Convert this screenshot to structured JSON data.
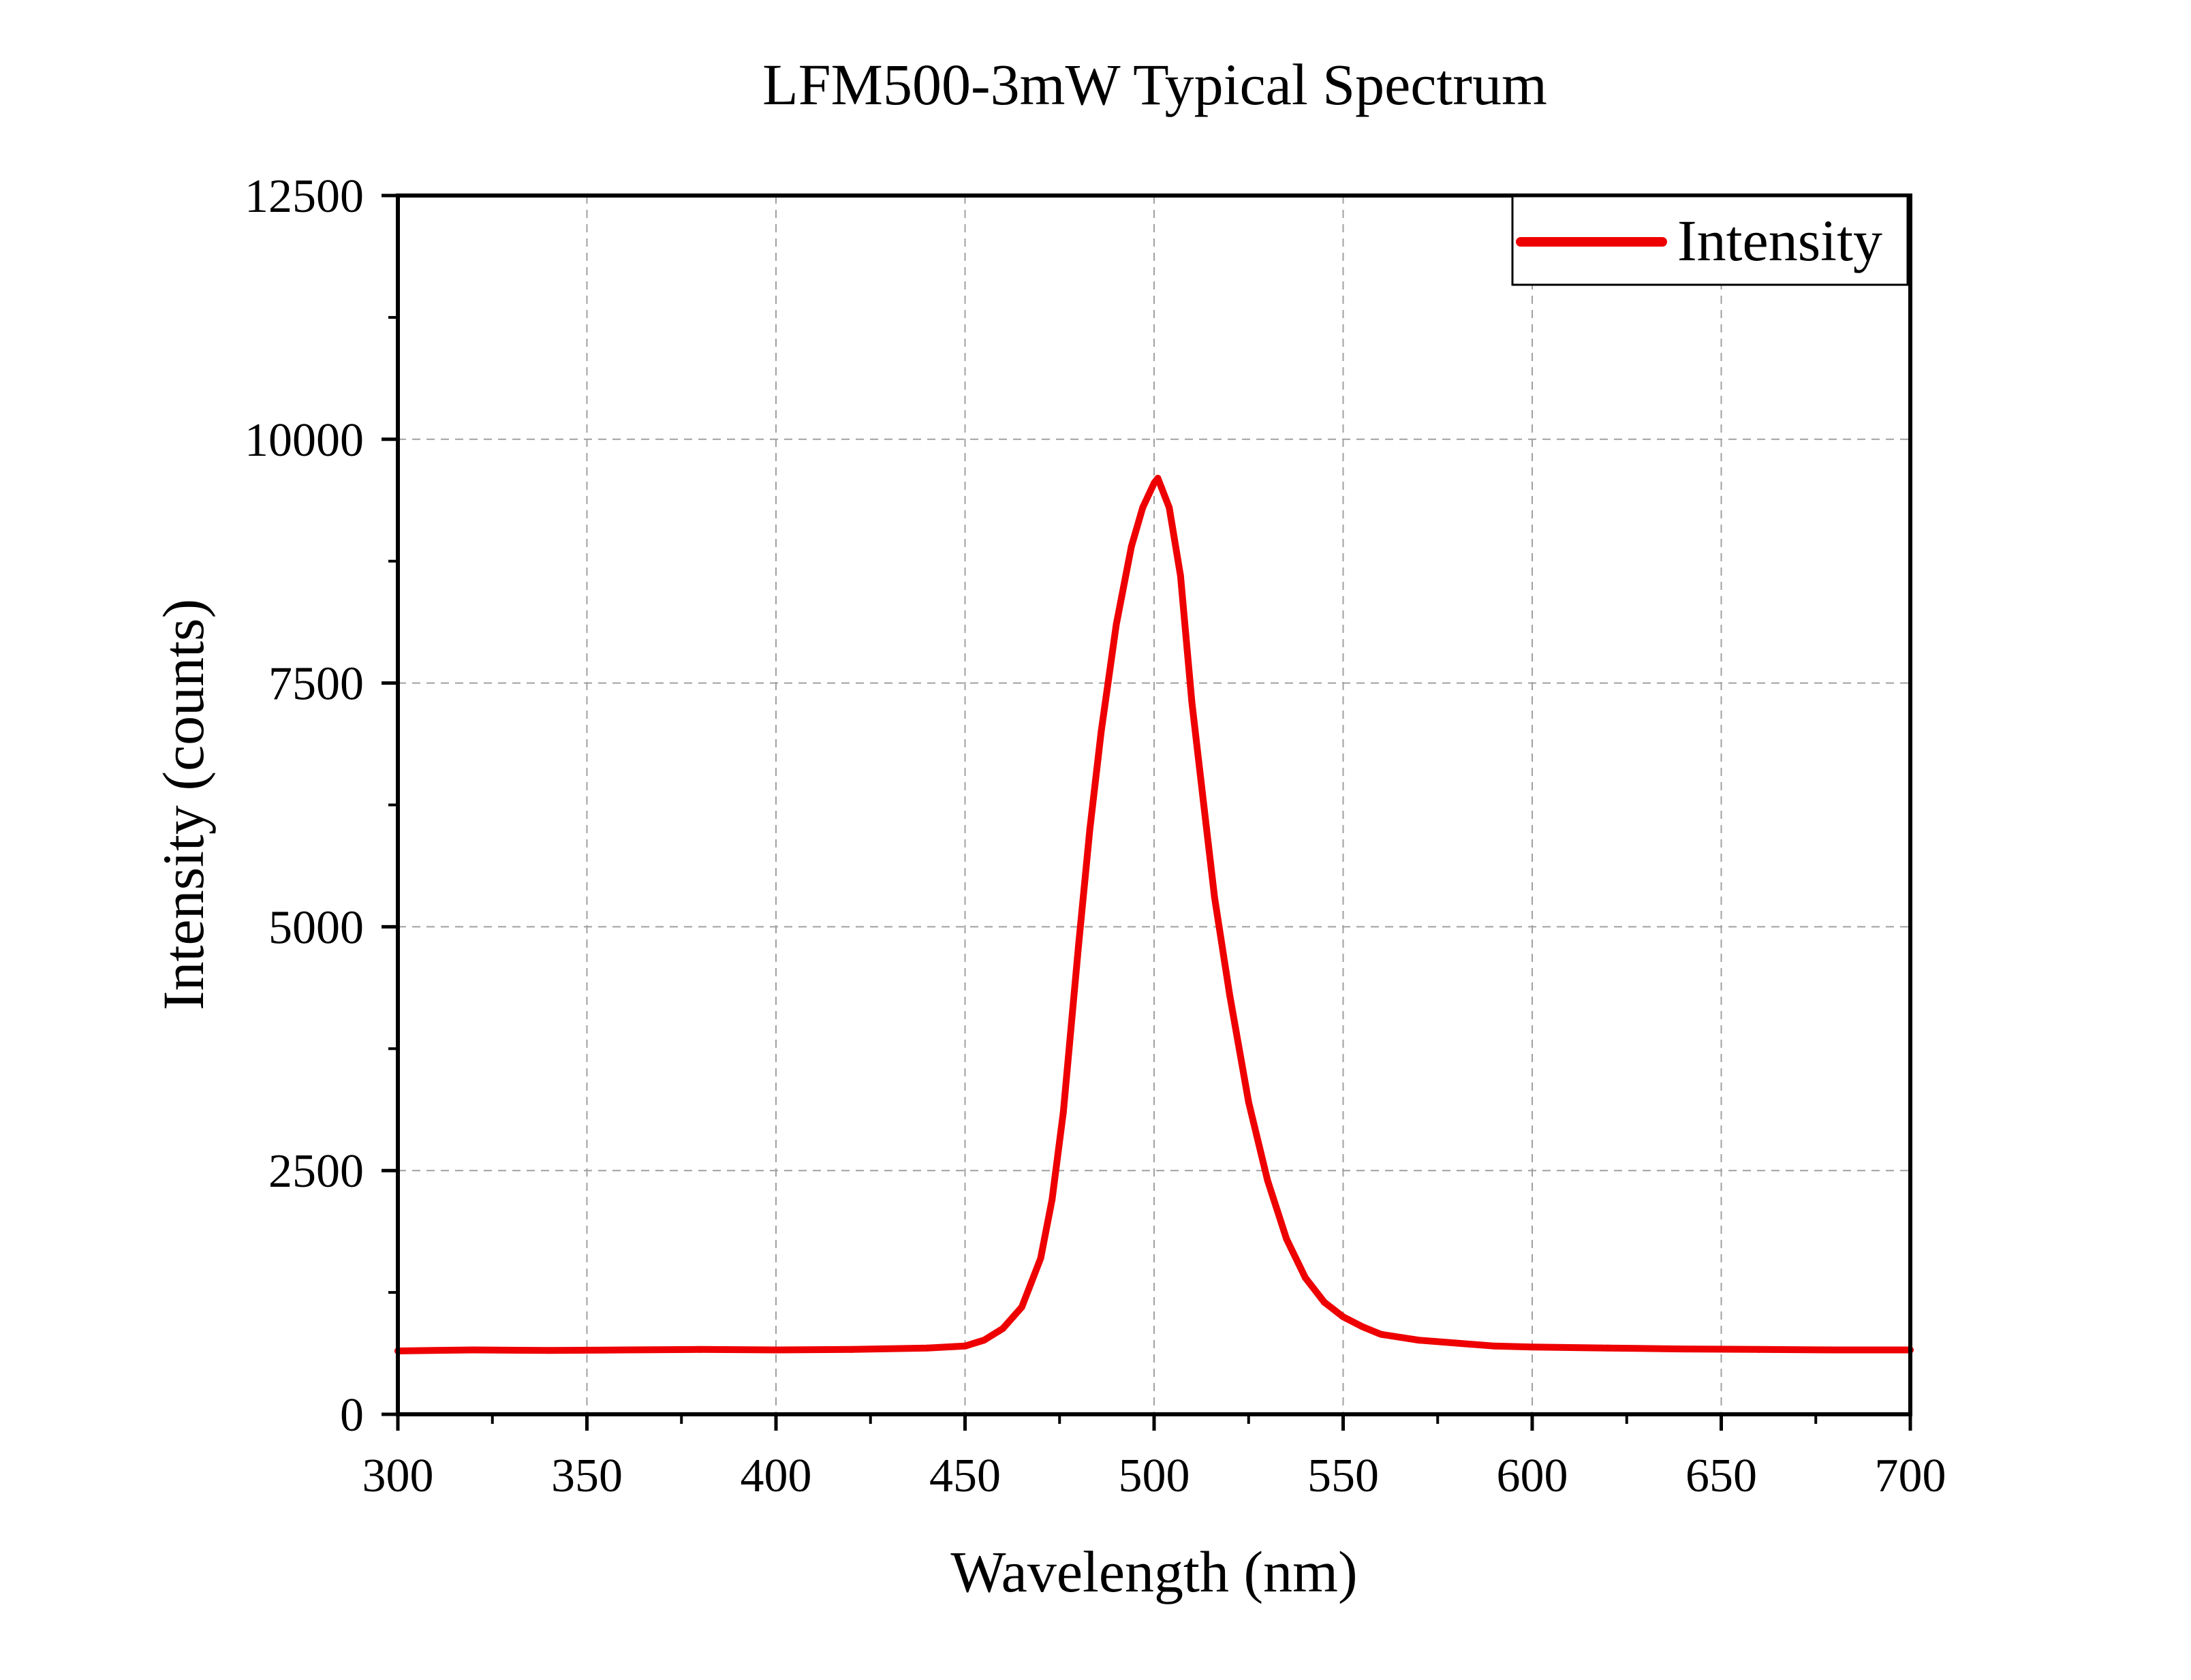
{
  "chart_data": {
    "type": "line",
    "title": "LFM500-3mW Typical Spectrum",
    "xlabel": "Wavelength (nm)",
    "ylabel": "Intensity (counts)",
    "xlim": [
      300,
      700
    ],
    "ylim": [
      0,
      12500
    ],
    "x_ticks": [
      300,
      350,
      400,
      450,
      500,
      550,
      600,
      650,
      700
    ],
    "y_ticks": [
      0,
      2500,
      5000,
      7500,
      10000,
      12500
    ],
    "x_tick_labels": [
      "300",
      "350",
      "400",
      "450",
      "500",
      "550",
      "600",
      "650",
      "700"
    ],
    "y_tick_labels": [
      "0",
      "2500",
      "5000",
      "7500",
      "10000",
      "12500"
    ],
    "grid": true,
    "legend_position": "top-right",
    "colors": {
      "series": "#ee0000",
      "grid": "#a0a0a0",
      "axis": "#000000"
    },
    "series": [
      {
        "name": "Intensity",
        "x": [
          300,
          320,
          340,
          360,
          380,
          400,
          420,
          440,
          450,
          455,
          460,
          465,
          470,
          473,
          476,
          480,
          483,
          486,
          490,
          494,
          497,
          500,
          501,
          502,
          504,
          507,
          510,
          513,
          516,
          520,
          525,
          530,
          535,
          540,
          545,
          550,
          555,
          560,
          570,
          580,
          590,
          600,
          620,
          640,
          660,
          680,
          700
        ],
        "y": [
          650,
          660,
          655,
          660,
          665,
          660,
          665,
          680,
          700,
          760,
          880,
          1100,
          1600,
          2200,
          3100,
          4800,
          6000,
          7000,
          8100,
          8900,
          9300,
          9550,
          9600,
          9500,
          9300,
          8600,
          7300,
          6300,
          5300,
          4300,
          3200,
          2400,
          1800,
          1400,
          1150,
          1000,
          900,
          820,
          760,
          730,
          700,
          690,
          680,
          670,
          665,
          660,
          660
        ]
      }
    ]
  }
}
